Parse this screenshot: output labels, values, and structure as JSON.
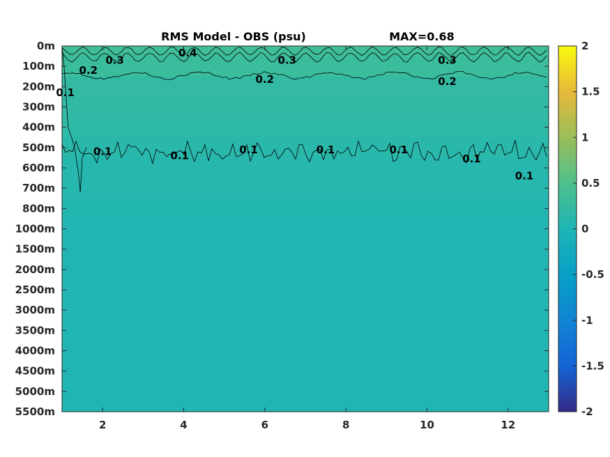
{
  "chart_data": {
    "type": "heatmap",
    "title": "RMS Model - OBS (psu)",
    "max_label": "MAX=0.68",
    "xlabel": "",
    "ylabel": "",
    "xlim": [
      1,
      13
    ],
    "x_ticks": [
      2,
      4,
      6,
      8,
      10,
      12
    ],
    "depth_levels": [
      "0m",
      "100m",
      "200m",
      "300m",
      "400m",
      "500m",
      "600m",
      "700m",
      "800m",
      "1000m",
      "1500m",
      "2000m",
      "2500m",
      "3000m",
      "3500m",
      "4000m",
      "4500m",
      "5000m",
      "5500m"
    ],
    "rms_profile": [
      0.35,
      0.3,
      0.22,
      0.19,
      0.17,
      0.12,
      0.09,
      0.08,
      0.06,
      0.03,
      0.02,
      0.02,
      0.02,
      0.02,
      0.02,
      0.02,
      0.02,
      0.02,
      0.02
    ],
    "contours": [
      {
        "level": 0.4,
        "label": "0.4"
      },
      {
        "level": 0.3,
        "label": "0.3"
      },
      {
        "level": 0.2,
        "label": "0.2"
      },
      {
        "level": 0.1,
        "label": "0.1"
      }
    ],
    "contour_labels": [
      {
        "text": "0.4",
        "x": 4.1,
        "depth_index": 0.35
      },
      {
        "text": "0.3",
        "x": 2.3,
        "depth_index": 0.7
      },
      {
        "text": "0.3",
        "x": 6.55,
        "depth_index": 0.7
      },
      {
        "text": "0.3",
        "x": 10.5,
        "depth_index": 0.7
      },
      {
        "text": "0.2",
        "x": 1.65,
        "depth_index": 1.2
      },
      {
        "text": "0.2",
        "x": 6.0,
        "depth_index": 1.65
      },
      {
        "text": "0.2",
        "x": 10.5,
        "depth_index": 1.75
      },
      {
        "text": "0.1",
        "x": 1.08,
        "depth_index": 2.3
      },
      {
        "text": "0.1",
        "x": 2.0,
        "depth_index": 5.2
      },
      {
        "text": "0.1",
        "x": 3.9,
        "depth_index": 5.4
      },
      {
        "text": "0.1",
        "x": 5.6,
        "depth_index": 5.1
      },
      {
        "text": "0.1",
        "x": 7.5,
        "depth_index": 5.1
      },
      {
        "text": "0.1",
        "x": 9.3,
        "depth_index": 5.1
      },
      {
        "text": "0.1",
        "x": 11.1,
        "depth_index": 5.55
      },
      {
        "text": "0.1",
        "x": 12.4,
        "depth_index": 6.4
      }
    ],
    "colorbar": {
      "range": [
        -2,
        2
      ],
      "ticks": [
        "-2",
        "-1.5",
        "-1",
        "-0.5",
        "0",
        "0.5",
        "1",
        "1.5",
        "2"
      ],
      "colormap": "parula"
    },
    "colors": {
      "background_deep": "#1ebaba",
      "contour_line": "#000000"
    }
  }
}
